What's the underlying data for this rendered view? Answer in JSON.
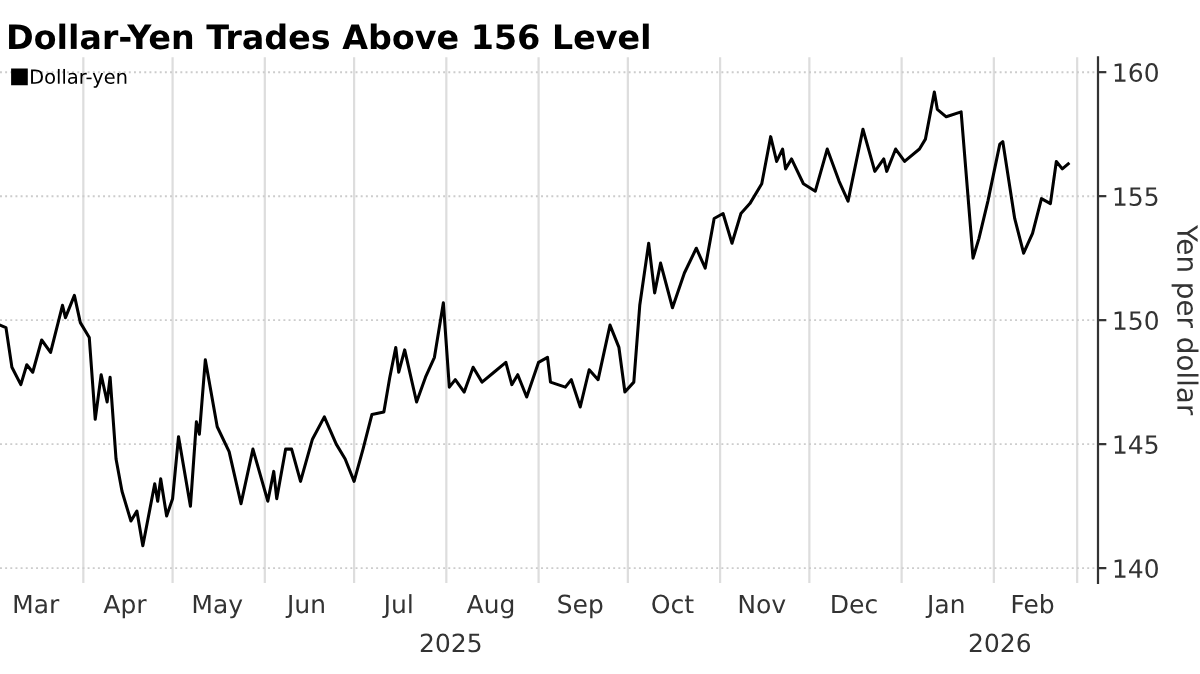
{
  "chart_data": {
    "type": "line",
    "title": "Dollar-Yen Trades Above 156 Level",
    "ylabel": "Yen per dollar",
    "legend": "top left",
    "grid": true,
    "marker": "none",
    "line_style": "solid",
    "xlim": [
      "2025-03-04",
      "2026-03-08"
    ],
    "ylim": [
      139.4,
      160.6
    ],
    "yticks": [
      140,
      145,
      150,
      155,
      160
    ],
    "xticks": [
      {
        "value": "2025-03-16",
        "label": "Mar"
      },
      {
        "value": "2025-04-01",
        "label": null
      },
      {
        "value": "2025-04-15",
        "label": "Apr"
      },
      {
        "value": "2025-05-01",
        "label": null
      },
      {
        "value": "2025-05-16",
        "label": "May"
      },
      {
        "value": "2025-06-01",
        "label": null
      },
      {
        "value": "2025-06-15",
        "label": "Jun"
      },
      {
        "value": "2025-07-01",
        "label": null
      },
      {
        "value": "2025-07-16",
        "label": "Jul"
      },
      {
        "value": "2025-08-01",
        "label": null
      },
      {
        "value": "2025-08-16",
        "label": "Aug"
      },
      {
        "value": "2025-09-01",
        "label": null
      },
      {
        "value": "2025-09-15",
        "label": "Sep"
      },
      {
        "value": "2025-10-01",
        "label": null
      },
      {
        "value": "2025-10-16",
        "label": "Oct"
      },
      {
        "value": "2025-11-01",
        "label": null
      },
      {
        "value": "2025-11-15",
        "label": "Nov"
      },
      {
        "value": "2025-12-01",
        "label": null
      },
      {
        "value": "2025-12-16",
        "label": "Dec"
      },
      {
        "value": "2026-01-01",
        "label": null
      },
      {
        "value": "2026-01-16",
        "label": "Jan"
      },
      {
        "value": "2026-02-01",
        "label": null
      },
      {
        "value": "2026-02-14",
        "label": "Feb"
      },
      {
        "value": "2026-03-01",
        "label": null
      }
    ],
    "annotations": [
      "2025",
      "2026"
    ],
    "x": [
      "2025-03-04",
      "2025-03-06",
      "2025-03-08",
      "2025-03-11",
      "2025-03-13",
      "2025-03-15",
      "2025-03-18",
      "2025-03-21",
      "2025-03-25",
      "2025-03-26",
      "2025-03-29",
      "2025-03-31",
      "2025-04-03",
      "2025-04-05",
      "2025-04-07",
      "2025-04-09",
      "2025-04-10",
      "2025-04-12",
      "2025-04-14",
      "2025-04-17",
      "2025-04-19",
      "2025-04-21",
      "2025-04-25",
      "2025-04-26",
      "2025-04-27",
      "2025-04-29",
      "2025-05-01",
      "2025-05-03",
      "2025-05-07",
      "2025-05-09",
      "2025-05-10",
      "2025-05-12",
      "2025-05-16",
      "2025-05-20",
      "2025-05-24",
      "2025-05-28",
      "2025-06-02",
      "2025-06-04",
      "2025-06-05",
      "2025-06-08",
      "2025-06-10",
      "2025-06-13",
      "2025-06-17",
      "2025-06-21",
      "2025-06-25",
      "2025-06-28",
      "2025-07-01",
      "2025-07-04",
      "2025-07-07",
      "2025-07-11",
      "2025-07-13",
      "2025-07-15",
      "2025-07-16",
      "2025-07-18",
      "2025-07-22",
      "2025-07-25",
      "2025-07-28",
      "2025-07-31",
      "2025-08-02",
      "2025-08-04",
      "2025-08-07",
      "2025-08-10",
      "2025-08-13",
      "2025-08-17",
      "2025-08-21",
      "2025-08-23",
      "2025-08-25",
      "2025-08-28",
      "2025-09-01",
      "2025-09-04",
      "2025-09-05",
      "2025-09-10",
      "2025-09-12",
      "2025-09-15",
      "2025-09-18",
      "2025-09-21",
      "2025-09-25",
      "2025-09-28",
      "2025-09-30",
      "2025-10-03",
      "2025-10-05",
      "2025-10-08",
      "2025-10-10",
      "2025-10-12",
      "2025-10-16",
      "2025-10-20",
      "2025-10-24",
      "2025-10-27",
      "2025-10-30",
      "2025-11-02",
      "2025-11-05",
      "2025-11-08",
      "2025-11-11",
      "2025-11-15",
      "2025-11-18",
      "2025-11-20",
      "2025-11-22",
      "2025-11-23",
      "2025-11-25",
      "2025-11-29",
      "2025-12-03",
      "2025-12-07",
      "2025-12-11",
      "2025-12-14",
      "2025-12-19",
      "2025-12-23",
      "2025-12-26",
      "2025-12-27",
      "2025-12-30",
      "2026-01-02",
      "2026-01-07",
      "2026-01-09",
      "2026-01-12",
      "2026-01-13",
      "2026-01-16",
      "2026-01-21",
      "2026-01-25",
      "2026-01-27",
      "2026-01-30",
      "2026-02-03",
      "2026-02-04",
      "2026-02-08",
      "2026-02-11",
      "2026-02-14",
      "2026-02-17",
      "2026-02-20",
      "2026-02-22",
      "2026-02-24",
      "2026-02-26"
    ],
    "series": [
      {
        "name": "Dollar-yen",
        "color": "#000000",
        "values": [
          149.8,
          149.7,
          148.1,
          147.4,
          148.2,
          147.9,
          149.2,
          148.7,
          150.6,
          150.1,
          151.0,
          149.9,
          149.3,
          146.0,
          147.8,
          146.7,
          147.7,
          144.4,
          143.1,
          141.9,
          142.3,
          140.9,
          143.4,
          142.7,
          143.6,
          142.1,
          142.8,
          145.3,
          142.5,
          145.9,
          145.4,
          148.4,
          145.7,
          144.7,
          142.6,
          144.8,
          142.7,
          143.9,
          142.8,
          144.8,
          144.8,
          143.5,
          145.2,
          146.1,
          145.0,
          144.4,
          143.5,
          144.8,
          146.2,
          146.3,
          147.7,
          148.9,
          147.9,
          148.8,
          146.7,
          147.7,
          148.5,
          150.7,
          147.3,
          147.6,
          147.1,
          148.1,
          147.5,
          147.9,
          148.3,
          147.4,
          147.8,
          146.9,
          148.3,
          148.5,
          147.5,
          147.3,
          147.6,
          146.5,
          148.0,
          147.6,
          149.8,
          148.9,
          147.1,
          147.5,
          150.6,
          153.1,
          151.1,
          152.3,
          150.5,
          151.9,
          152.9,
          152.1,
          154.1,
          154.3,
          153.1,
          154.3,
          154.7,
          155.5,
          157.4,
          156.4,
          156.9,
          156.1,
          156.5,
          155.5,
          155.2,
          156.9,
          155.6,
          154.8,
          157.7,
          156.0,
          156.5,
          156.0,
          156.9,
          156.4,
          156.9,
          157.3,
          159.2,
          158.5,
          158.2,
          158.4,
          152.5,
          153.3,
          154.8,
          157.1,
          157.2,
          154.1,
          152.7,
          153.5,
          154.9,
          154.7,
          156.4,
          156.1,
          156.3
        ]
      }
    ]
  }
}
